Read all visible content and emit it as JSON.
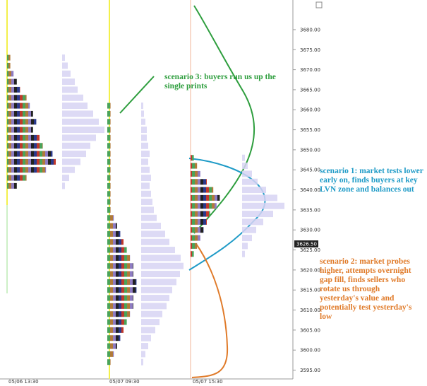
{
  "chart_data": {
    "type": "market-profile",
    "ylim": [
      3592.8,
      3687.4
    ],
    "yticks": [
      {
        "value": 3680,
        "label": "3680.00"
      },
      {
        "value": 3675,
        "label": "3675.00"
      },
      {
        "value": 3670,
        "label": "3670.00"
      },
      {
        "value": 3665,
        "label": "3665.00"
      },
      {
        "value": 3660,
        "label": "3660.00"
      },
      {
        "value": 3655,
        "label": "3655.00"
      },
      {
        "value": 3650,
        "label": "3650.00"
      },
      {
        "value": 3645,
        "label": "3645.00"
      },
      {
        "value": 3640,
        "label": "3640.00"
      },
      {
        "value": 3635,
        "label": "3635.00"
      },
      {
        "value": 3630,
        "label": "3630.00"
      },
      {
        "value": 3625,
        "label": "3625.00"
      },
      {
        "value": 3620,
        "label": "3620.00"
      },
      {
        "value": 3615,
        "label": "3615.00"
      },
      {
        "value": 3610,
        "label": "3610.00"
      },
      {
        "value": 3605,
        "label": "3605.00"
      },
      {
        "value": 3600,
        "label": "3600.00"
      },
      {
        "value": 3595,
        "label": "3595.00"
      }
    ],
    "last_price": {
      "value": 3626.5,
      "label": "3626.50"
    },
    "sessions": [
      {
        "name": "05/06 13:30",
        "prices": [
          3673,
          3671,
          3669,
          3667,
          3665,
          3663,
          3661,
          3659,
          3657,
          3655,
          3653,
          3651,
          3649,
          3647,
          3645,
          3643,
          3641
        ],
        "tpo": [
          1,
          1,
          2,
          3,
          4,
          6,
          7,
          8,
          9,
          8,
          10,
          11,
          14,
          15,
          12,
          6,
          3
        ],
        "volume": [
          4,
          8,
          12,
          18,
          22,
          30,
          36,
          44,
          52,
          60,
          48,
          40,
          34,
          26,
          18,
          10,
          4
        ]
      },
      {
        "name": "05/07 09:30",
        "prices": [
          3661,
          3659,
          3657,
          3655,
          3653,
          3651,
          3649,
          3647,
          3645,
          3643,
          3641,
          3639,
          3637,
          3635,
          3633,
          3631,
          3629,
          3627,
          3625,
          3623,
          3621,
          3619,
          3617,
          3615,
          3613,
          3611,
          3609,
          3607,
          3605,
          3603,
          3601,
          3599,
          3597
        ],
        "tpo": [
          1,
          1,
          1,
          1,
          1,
          1,
          1,
          1,
          1,
          1,
          1,
          1,
          1,
          1,
          2,
          3,
          4,
          5,
          6,
          7,
          8,
          8,
          9,
          9,
          8,
          8,
          7,
          6,
          5,
          4,
          3,
          2,
          1
        ],
        "volume": [
          3,
          4,
          6,
          8,
          8,
          10,
          12,
          10,
          12,
          14,
          12,
          14,
          16,
          18,
          22,
          28,
          34,
          40,
          48,
          56,
          60,
          55,
          50,
          44,
          40,
          36,
          30,
          26,
          20,
          14,
          10,
          6,
          3
        ]
      },
      {
        "name": "05/07 15:30",
        "prices": [
          3648,
          3646,
          3644,
          3642,
          3640,
          3638,
          3636,
          3634,
          3632,
          3630,
          3628,
          3626,
          3624
        ],
        "tpo": [
          1,
          2,
          3,
          5,
          7,
          9,
          8,
          6,
          5,
          4,
          3,
          2,
          1
        ],
        "volume": [
          4,
          8,
          14,
          22,
          34,
          50,
          60,
          44,
          30,
          20,
          14,
          8,
          4
        ]
      }
    ],
    "annotations": [
      {
        "text": "scenario 3: buyers run us up the single prints",
        "color": "#2e9e3e"
      },
      {
        "text": "scenario 1: market tests lower early on, finds buyers at key LVN zone and balances out",
        "color": "#1f9bc7"
      },
      {
        "text": "scenario 2: market probes higher, attempts overnight gap fill, finds sellers who rotate us through yesterday's value and potentially test yesterday's low",
        "color": "#e07b2a"
      }
    ]
  }
}
